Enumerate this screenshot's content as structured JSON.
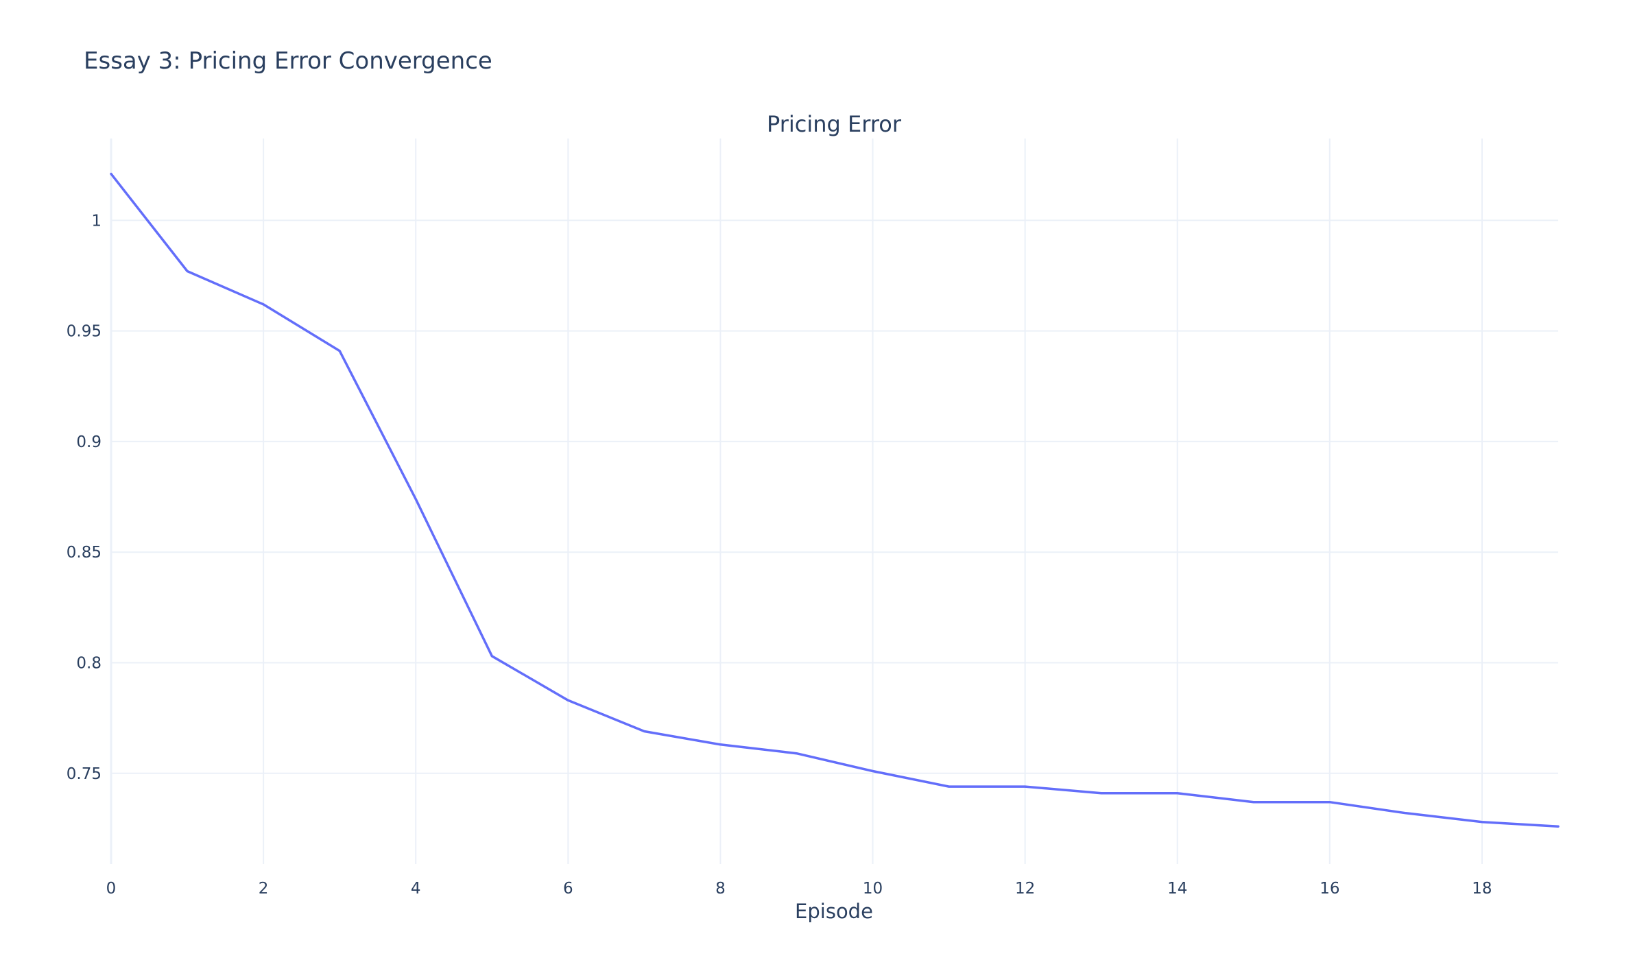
{
  "chart_data": {
    "type": "line",
    "title": "Essay 3: Pricing Error Convergence",
    "subtitle": "Pricing Error",
    "xlabel": "Episode",
    "ylabel": "",
    "grid": true,
    "legend": "none",
    "line_color": "#636efa",
    "xlim": [
      0,
      19
    ],
    "ylim": [
      0.709,
      1.037
    ],
    "x_ticks": [
      0,
      2,
      4,
      6,
      8,
      10,
      12,
      14,
      16,
      18
    ],
    "x_tick_labels": [
      "0",
      "2",
      "4",
      "6",
      "8",
      "10",
      "12",
      "14",
      "16",
      "18"
    ],
    "y_ticks": [
      0.75,
      0.8,
      0.85,
      0.9,
      0.95,
      1.0
    ],
    "y_tick_labels": [
      "0.75",
      "0.8",
      "0.85",
      "0.9",
      "0.95",
      "1"
    ],
    "x": [
      0,
      1,
      2,
      3,
      4,
      5,
      6,
      7,
      8,
      9,
      10,
      11,
      12,
      13,
      14,
      15,
      16,
      17,
      18,
      19
    ],
    "y": [
      1.021,
      0.977,
      0.962,
      0.941,
      0.874,
      0.803,
      0.783,
      0.769,
      0.763,
      0.759,
      0.751,
      0.744,
      0.744,
      0.741,
      0.741,
      0.737,
      0.737,
      0.732,
      0.728,
      0.726
    ]
  }
}
